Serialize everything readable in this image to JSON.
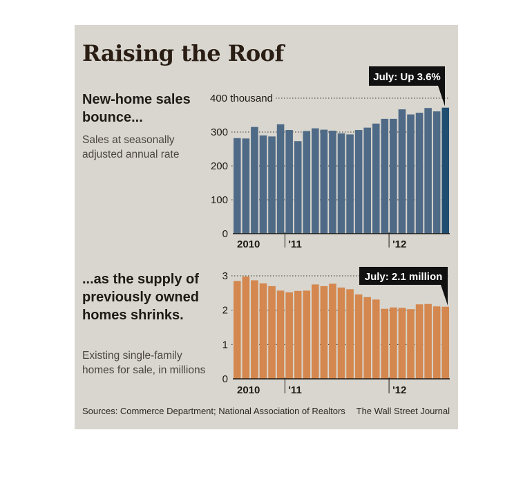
{
  "title": "Raising the Roof",
  "chart1": {
    "headline": "New-home sales bounce...",
    "subtitle": "Sales at seasonally adjusted annual rate"
  },
  "chart2": {
    "headline": "...as the supply of previously owned homes shrinks.",
    "subtitle": "Existing single-family homes for sale, in millions"
  },
  "sources": "Sources: Commerce Department; National Association of Realtors",
  "credit": "The Wall Street Journal",
  "colors": {
    "bar1": "#4f6a86",
    "bar1_last": "#1f4e70",
    "bar2": "#d4874e",
    "background": "#d8d6cf"
  },
  "chart_data": [
    {
      "type": "bar",
      "ylim": [
        0,
        400
      ],
      "yticks": [
        "0",
        "100",
        "200",
        "300",
        "400 thousand"
      ],
      "ytick_values": [
        0,
        100,
        200,
        300,
        400
      ],
      "xtick_labels": [
        "2010",
        "'11",
        "'12"
      ],
      "xtick_index": [
        0,
        6,
        18
      ],
      "values": [
        282,
        281,
        315,
        290,
        287,
        323,
        306,
        273,
        303,
        311,
        307,
        304,
        296,
        293,
        306,
        313,
        325,
        339,
        339,
        367,
        352,
        357,
        371,
        361,
        372
      ],
      "callout": "July: Up 3.6%",
      "grid": "dotted-horizontal"
    },
    {
      "type": "bar",
      "ylim": [
        0,
        3
      ],
      "yticks": [
        "0",
        "1",
        "2",
        "3"
      ],
      "ytick_values": [
        0,
        1,
        2,
        3
      ],
      "xtick_labels": [
        "2010",
        "'11",
        "'12"
      ],
      "xtick_index": [
        0,
        6,
        18
      ],
      "values": [
        2.85,
        2.98,
        2.87,
        2.78,
        2.7,
        2.57,
        2.52,
        2.56,
        2.57,
        2.75,
        2.7,
        2.77,
        2.66,
        2.61,
        2.46,
        2.38,
        2.31,
        2.04,
        2.08,
        2.07,
        2.03,
        2.17,
        2.18,
        2.11,
        2.1
      ],
      "callout": "July: 2.1 million",
      "grid": "dotted-horizontal"
    }
  ]
}
